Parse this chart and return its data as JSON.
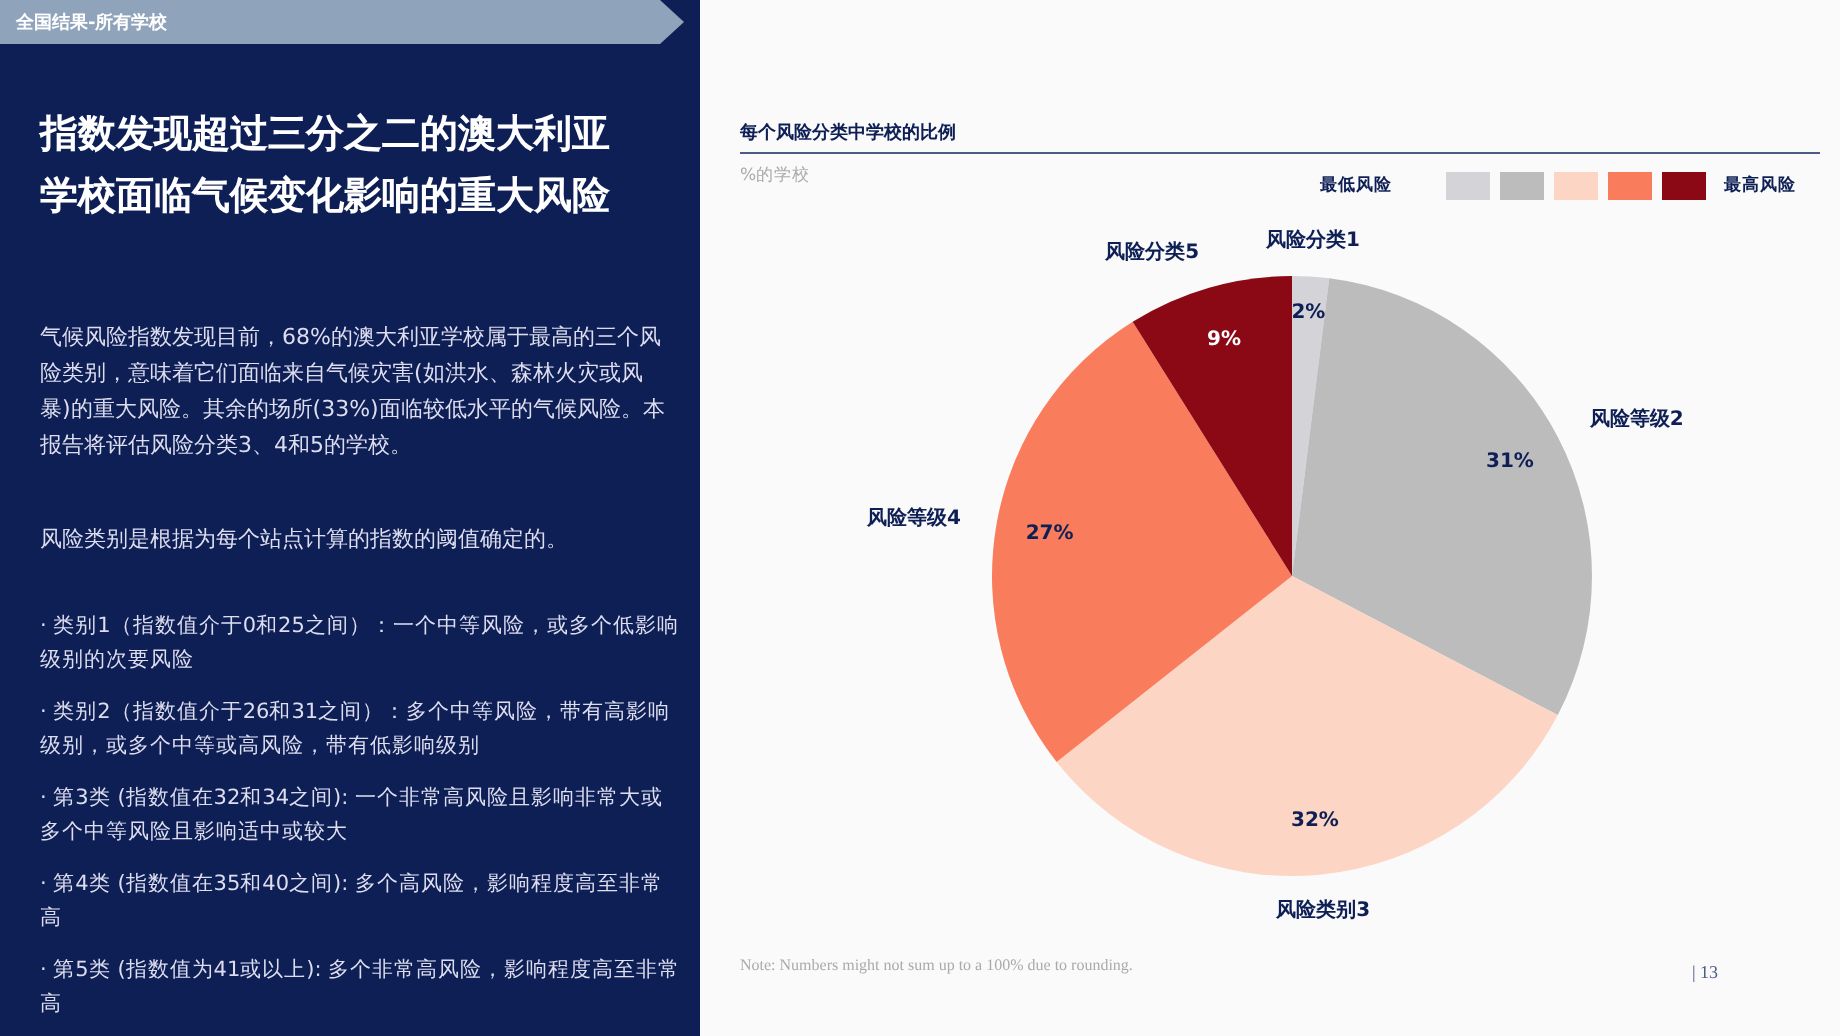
{
  "chart_data": {
    "type": "pie",
    "title": "每个风险分类中学校的比例",
    "subtitle": "%的学校",
    "categories": [
      "风险分类1",
      "风险等级2",
      "风险类别3",
      "风险等级4",
      "风险分类5"
    ],
    "values": [
      2,
      31,
      32,
      27,
      9
    ],
    "colors": [
      "#d4d4d8",
      "#bcbcbc",
      "#fdd5c4",
      "#f97d5c",
      "#8a0914"
    ],
    "value_labels": [
      "2%",
      "31%",
      "32%",
      "27%",
      "9%"
    ],
    "annotations": [
      "全国结果-所有学校",
      "指数发现超过三分之二的澳大利亚学校面临气候变化影响的重大风险",
      "气候风险指数发现目前，68%的澳大利亚学校属于最高的三个风险类别，意味着它们面临来自气候灾害(如洪水、森林火灾或风暴)的重大风险。其余的场所(33%)面临较低水平的气候风险。本报告将评估风险分类3、4和5的学校。",
      "风险类别是根据为每个站点计算的指数的阈值确定的。",
      "· 类别1（指数值介于0和25之间）：一个中等风险，或多个低影响级别的次要风险",
      "· 类别2（指数值介于26和31之间）：多个中等风险，带有高影响级别，或多个中等或高风险，带有低影响级别",
      "· 第3类 (指数值在32和34之间): 一个非常高风险且影响非常大或多个中等风险且影响适中或较大",
      "· 第4类 (指数值在35和40之间): 多个高风险，影响程度高至非常高",
      "· 第5类 (指数值为41或以上): 多个非常高风险，影响程度高至非常高",
      "Note: Numbers might not sum up to a 100% due to rounding.",
      "| 13",
      "最低风险",
      "最高风险"
    ]
  }
}
